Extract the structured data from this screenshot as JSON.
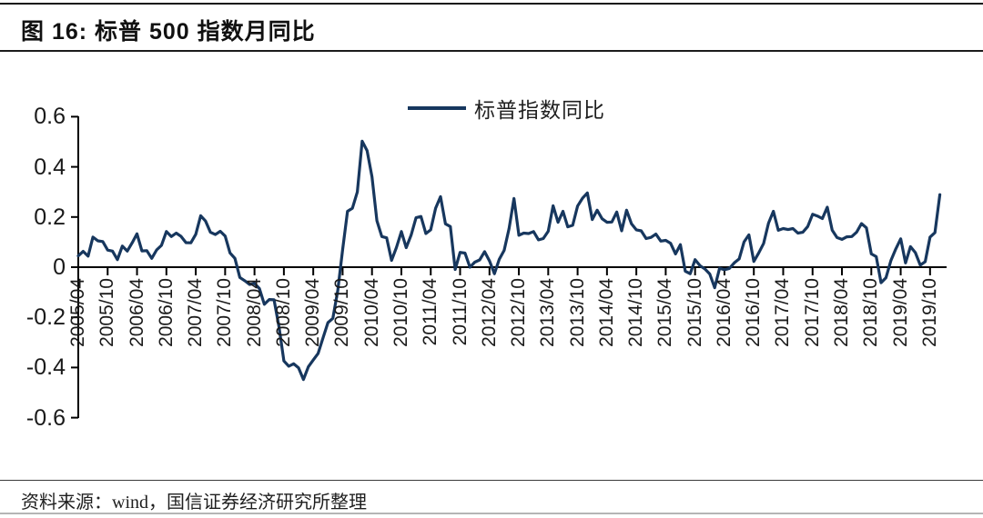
{
  "title": "图 16:  标普 500 指数月同比",
  "source_note": "资料来源：wind，国信证券经济研究所整理",
  "legend": {
    "label": "标普指数同比"
  },
  "colors": {
    "line": "#17375E",
    "axis": "#000000",
    "text": "#1a1a1a"
  },
  "chart_data": {
    "type": "line",
    "title": "标普 500 指数月同比",
    "xlabel": "",
    "ylabel": "",
    "legend_position": "top-center",
    "grid": false,
    "ylim": [
      -0.6,
      0.6
    ],
    "y_tick_labels": [
      "0.6",
      "0.4",
      "0.2",
      "0",
      "-0.2",
      "-0.4",
      "-0.6"
    ],
    "y_tick_values": [
      0.6,
      0.4,
      0.2,
      0,
      -0.2,
      -0.4,
      -0.6
    ],
    "x_tick_labels": [
      "2005/04",
      "2005/10",
      "2006/04",
      "2006/10",
      "2007/04",
      "2007/10",
      "2008/04",
      "2008/10",
      "2009/04",
      "2009/10",
      "2010/04",
      "2010/10",
      "2011/04",
      "2011/10",
      "2012/04",
      "2012/10",
      "2013/04",
      "2013/10",
      "2014/04",
      "2014/10",
      "2015/04",
      "2015/10",
      "2016/04",
      "2016/10",
      "2017/04",
      "2017/10",
      "2018/04",
      "2018/10",
      "2019/04",
      "2019/10"
    ],
    "x_start": "2005/04",
    "x_end": "2019/12",
    "frequency": "monthly",
    "series": [
      {
        "name": "标普指数同比",
        "values": [
          0.045,
          0.063,
          0.044,
          0.12,
          0.105,
          0.102,
          0.068,
          0.064,
          0.03,
          0.084,
          0.064,
          0.097,
          0.133,
          0.065,
          0.066,
          0.035,
          0.069,
          0.087,
          0.142,
          0.122,
          0.136,
          0.123,
          0.098,
          0.097,
          0.131,
          0.205,
          0.184,
          0.139,
          0.13,
          0.143,
          0.124,
          0.057,
          0.035,
          -0.041,
          -0.054,
          -0.069,
          -0.065,
          -0.085,
          -0.148,
          -0.129,
          -0.13,
          -0.237,
          -0.374,
          -0.395,
          -0.385,
          -0.401,
          -0.448,
          -0.397,
          -0.37,
          -0.344,
          -0.282,
          -0.221,
          -0.204,
          -0.093,
          0.069,
          0.223,
          0.235,
          0.3,
          0.502,
          0.465,
          0.36,
          0.185,
          0.122,
          0.117,
          0.027,
          0.079,
          0.142,
          0.078,
          0.128,
          0.197,
          0.202,
          0.134,
          0.149,
          0.235,
          0.281,
          0.173,
          0.162,
          -0.009,
          0.059,
          0.056,
          0.0,
          0.02,
          0.029,
          0.062,
          0.025,
          -0.026,
          0.031,
          0.067,
          0.154,
          0.274,
          0.127,
          0.136,
          0.134,
          0.142,
          0.109,
          0.114,
          0.143,
          0.245,
          0.179,
          0.223,
          0.161,
          0.167,
          0.244,
          0.275,
          0.296,
          0.19,
          0.227,
          0.193,
          0.179,
          0.18,
          0.22,
          0.145,
          0.227,
          0.173,
          0.149,
          0.145,
          0.114,
          0.119,
          0.132,
          0.104,
          0.107,
          0.095,
          0.053,
          0.09,
          -0.016,
          -0.026,
          0.03,
          0.006,
          -0.007,
          -0.027,
          -0.082,
          -0.004,
          -0.01,
          -0.005,
          0.017,
          0.033,
          0.101,
          0.129,
          0.023,
          0.057,
          0.095,
          0.175,
          0.223,
          0.147,
          0.154,
          0.15,
          0.154,
          0.136,
          0.139,
          0.162,
          0.211,
          0.204,
          0.194,
          0.239,
          0.148,
          0.118,
          0.111,
          0.121,
          0.122,
          0.14,
          0.174,
          0.157,
          0.053,
          0.042,
          -0.062,
          -0.042,
          0.026,
          0.073,
          0.113,
          0.017,
          0.082,
          0.058,
          0.008,
          0.022,
          0.12,
          0.138,
          0.289
        ]
      }
    ]
  }
}
